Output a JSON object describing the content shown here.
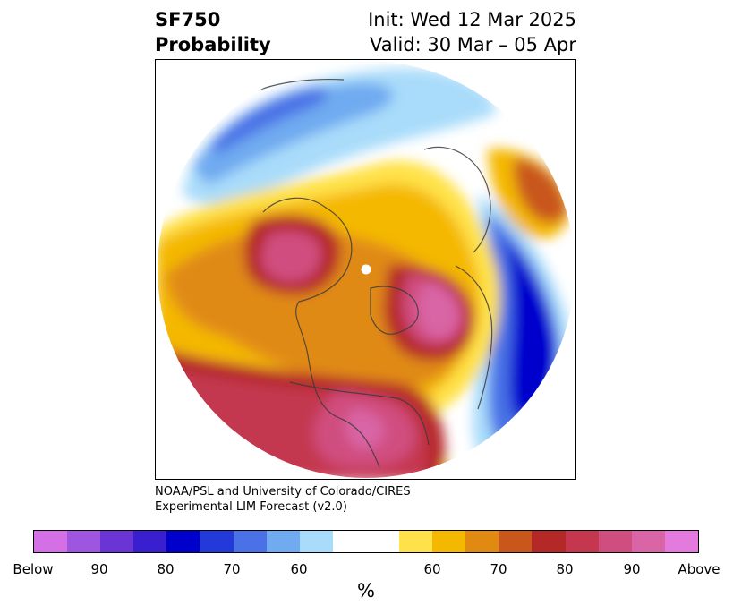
{
  "header": {
    "title_line1": "SF750",
    "title_line2": "Probability",
    "init": "Init: Wed 12 Mar 2025",
    "valid": "Valid: 30 Mar – 05 Apr"
  },
  "credit": {
    "line1": "NOAA/PSL and University of Colorado/CIRES",
    "line2": "Experimental LIM Forecast (v2.0)"
  },
  "colorbar": {
    "colors": [
      "#d56fe6",
      "#9e55e0",
      "#6b35d6",
      "#3a1fd0",
      "#0000cd",
      "#2439d9",
      "#4a72e6",
      "#70aaf0",
      "#a9dcfa",
      "#ffffff",
      "#ffffff",
      "#ffe24a",
      "#f4b800",
      "#e08a12",
      "#c9561a",
      "#b52828",
      "#c4374f",
      "#d04e7f",
      "#d965a6",
      "#e47add"
    ],
    "ticks": [
      "Below",
      "90",
      "80",
      "70",
      "60",
      "60",
      "70",
      "80",
      "90",
      "Above"
    ],
    "unit": "%"
  }
}
